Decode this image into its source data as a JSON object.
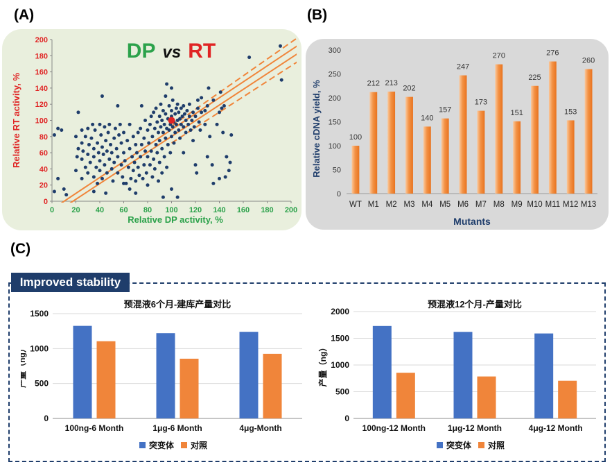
{
  "panels": {
    "a": "(A)",
    "b": "(B)",
    "c": "(C)"
  },
  "colors": {
    "scatter_bg": "#e9efdd",
    "bar_bg": "#d9d9d9",
    "dot": "#1f3d6b",
    "highlight": "#e02424",
    "orange": "#f0853a",
    "blue": "#4472c4",
    "banner": "#1f3d6b",
    "green_axis": "#2ca24b",
    "red_axis": "#e02424"
  },
  "chart_data": [
    {
      "id": "A",
      "type": "scatter",
      "title_parts": [
        "DP",
        "vs",
        "RT"
      ],
      "xlabel": "Relative DP activity, %",
      "ylabel": "Relative RT activity, %",
      "xlim": [
        0,
        200
      ],
      "ylim": [
        0,
        200
      ],
      "xticks": [
        0,
        20,
        40,
        60,
        80,
        100,
        120,
        140,
        160,
        180,
        200
      ],
      "yticks": [
        0,
        20,
        40,
        60,
        80,
        100,
        120,
        140,
        160,
        180,
        200
      ],
      "highlight_point": [
        100,
        100
      ],
      "trend_lines": [
        {
          "style": "solid",
          "points": [
            [
              0,
              -10
            ],
            [
              210,
              197
            ]
          ]
        },
        {
          "style": "solid",
          "points": [
            [
              0,
              -17
            ],
            [
              210,
              187
            ]
          ]
        },
        {
          "style": "dashed",
          "points": [
            [
              100,
              93
            ],
            [
              210,
              207
            ]
          ]
        },
        {
          "style": "dashed",
          "points": [
            [
              100,
              72
            ],
            [
              210,
              177
            ]
          ]
        }
      ],
      "points": [
        [
          2,
          12
        ],
        [
          2,
          82
        ],
        [
          5,
          90
        ],
        [
          8,
          88
        ],
        [
          12,
          8
        ],
        [
          20,
          38
        ],
        [
          20,
          80
        ],
        [
          21,
          55
        ],
        [
          22,
          65
        ],
        [
          22,
          110
        ],
        [
          25,
          88
        ],
        [
          25,
          72
        ],
        [
          25,
          52
        ],
        [
          25,
          28
        ],
        [
          26,
          62
        ],
        [
          28,
          42
        ],
        [
          28,
          80
        ],
        [
          30,
          90
        ],
        [
          30,
          35
        ],
        [
          30,
          58
        ],
        [
          31,
          70
        ],
        [
          32,
          48
        ],
        [
          33,
          78
        ],
        [
          34,
          95
        ],
        [
          35,
          30
        ],
        [
          35,
          55
        ],
        [
          35,
          65
        ],
        [
          36,
          88
        ],
        [
          37,
          42
        ],
        [
          38,
          72
        ],
        [
          38,
          22
        ],
        [
          39,
          60
        ],
        [
          40,
          95
        ],
        [
          40,
          50
        ],
        [
          40,
          38
        ],
        [
          41,
          82
        ],
        [
          42,
          28
        ],
        [
          42,
          67
        ],
        [
          43,
          58
        ],
        [
          44,
          92
        ],
        [
          44,
          45
        ],
        [
          45,
          75
        ],
        [
          46,
          35
        ],
        [
          46,
          62
        ],
        [
          47,
          85
        ],
        [
          48,
          52
        ],
        [
          48,
          95
        ],
        [
          49,
          70
        ],
        [
          50,
          40
        ],
        [
          50,
          60
        ],
        [
          51,
          25
        ],
        [
          52,
          78
        ],
        [
          52,
          48
        ],
        [
          53,
          90
        ],
        [
          54,
          65
        ],
        [
          55,
          35
        ],
        [
          55,
          55
        ],
        [
          56,
          82
        ],
        [
          57,
          95
        ],
        [
          58,
          45
        ],
        [
          58,
          72
        ],
        [
          59,
          30
        ],
        [
          60,
          60
        ],
        [
          60,
          85
        ],
        [
          61,
          50
        ],
        [
          62,
          22
        ],
        [
          63,
          75
        ],
        [
          64,
          42
        ],
        [
          65,
          65
        ],
        [
          65,
          95
        ],
        [
          66,
          28
        ],
        [
          67,
          55
        ],
        [
          68,
          80
        ],
        [
          68,
          38
        ],
        [
          69,
          48
        ],
        [
          70,
          70
        ],
        [
          70,
          25
        ],
        [
          71,
          60
        ],
        [
          72,
          85
        ],
        [
          72,
          42
        ],
        [
          73,
          32
        ],
        [
          74,
          55
        ],
        [
          74,
          90
        ],
        [
          75,
          70
        ],
        [
          76,
          28
        ],
        [
          77,
          45
        ],
        [
          77,
          78
        ],
        [
          78,
          62
        ],
        [
          78,
          100
        ],
        [
          79,
          35
        ],
        [
          80,
          88
        ],
        [
          80,
          55
        ],
        [
          80,
          20
        ],
        [
          81,
          72
        ],
        [
          82,
          95
        ],
        [
          82,
          45
        ],
        [
          83,
          105
        ],
        [
          83,
          62
        ],
        [
          84,
          30
        ],
        [
          84,
          80
        ],
        [
          85,
          110
        ],
        [
          85,
          52
        ],
        [
          86,
          90
        ],
        [
          86,
          40
        ],
        [
          87,
          70
        ],
        [
          87,
          115
        ],
        [
          88,
          98
        ],
        [
          88,
          60
        ],
        [
          89,
          85
        ],
        [
          89,
          25
        ],
        [
          90,
          105
        ],
        [
          90,
          75
        ],
        [
          90,
          48
        ],
        [
          91,
          120
        ],
        [
          91,
          92
        ],
        [
          92,
          65
        ],
        [
          92,
          100
        ],
        [
          92,
          35
        ],
        [
          93,
          85
        ],
        [
          93,
          112
        ],
        [
          94,
          55
        ],
        [
          94,
          95
        ],
        [
          95,
          78
        ],
        [
          95,
          108
        ],
        [
          95,
          130
        ],
        [
          96,
          90
        ],
        [
          96,
          42
        ],
        [
          97,
          102
        ],
        [
          97,
          70
        ],
        [
          98,
          118
        ],
        [
          98,
          88
        ],
        [
          99,
          60
        ],
        [
          99,
          95
        ],
        [
          100,
          105
        ],
        [
          100,
          80
        ],
        [
          100,
          112
        ],
        [
          101,
          92
        ],
        [
          101,
          125
        ],
        [
          102,
          98
        ],
        [
          102,
          72
        ],
        [
          103,
          108
        ],
        [
          103,
          85
        ],
        [
          104,
          115
        ],
        [
          104,
          95
        ],
        [
          105,
          100
        ],
        [
          105,
          120
        ],
        [
          106,
          88
        ],
        [
          106,
          110
        ],
        [
          107,
          102
        ],
        [
          107,
          78
        ],
        [
          108,
          115
        ],
        [
          108,
          95
        ],
        [
          109,
          105
        ],
        [
          110,
          92
        ],
        [
          110,
          118
        ],
        [
          110,
          60
        ],
        [
          111,
          108
        ],
        [
          112,
          100
        ],
        [
          112,
          85
        ],
        [
          113,
          112
        ],
        [
          114,
          95
        ],
        [
          115,
          105
        ],
        [
          115,
          120
        ],
        [
          116,
          88
        ],
        [
          117,
          100
        ],
        [
          118,
          110
        ],
        [
          118,
          75
        ],
        [
          119,
          92
        ],
        [
          120,
          105
        ],
        [
          120,
          45
        ],
        [
          121,
          35
        ],
        [
          122,
          125
        ],
        [
          122,
          115
        ],
        [
          123,
          98
        ],
        [
          124,
          88
        ],
        [
          125,
          110
        ],
        [
          125,
          128
        ],
        [
          128,
          95
        ],
        [
          128,
          112
        ],
        [
          130,
          118
        ],
        [
          130,
          55
        ],
        [
          131,
          140
        ],
        [
          132,
          80
        ],
        [
          134,
          45
        ],
        [
          135,
          22
        ],
        [
          135,
          125
        ],
        [
          138,
          95
        ],
        [
          140,
          28
        ],
        [
          140,
          110
        ],
        [
          141,
          135
        ],
        [
          142,
          115
        ],
        [
          143,
          85
        ],
        [
          144,
          118
        ],
        [
          145,
          30
        ],
        [
          146,
          55
        ],
        [
          148,
          38
        ],
        [
          149,
          48
        ],
        [
          150,
          82
        ],
        [
          42,
          130
        ],
        [
          55,
          118
        ],
        [
          75,
          118
        ],
        [
          96,
          145
        ],
        [
          100,
          140
        ],
        [
          105,
          5
        ],
        [
          93,
          5
        ],
        [
          100,
          15
        ],
        [
          165,
          178
        ],
        [
          192,
          150
        ],
        [
          191,
          192
        ],
        [
          10,
          15
        ],
        [
          5,
          28
        ],
        [
          60,
          22
        ],
        [
          65,
          15
        ],
        [
          70,
          10
        ],
        [
          45,
          10
        ],
        [
          35,
          12
        ]
      ]
    },
    {
      "id": "B",
      "type": "bar",
      "xlabel": "Mutants",
      "ylabel": "Relative cDNA yield, %",
      "ylim": [
        0,
        300
      ],
      "yticks": [
        0,
        50,
        100,
        150,
        200,
        250,
        300
      ],
      "categories": [
        "WT",
        "M1",
        "M2",
        "M3",
        "M4",
        "M5",
        "M6",
        "M7",
        "M8",
        "M9",
        "M10",
        "M11",
        "M12",
        "M13"
      ],
      "values": [
        100,
        212,
        213,
        202,
        140,
        157,
        247,
        173,
        270,
        151,
        225,
        276,
        153,
        260
      ],
      "labels": [
        "100",
        "212",
        "213",
        "202",
        "140",
        "157",
        "247",
        "173",
        "270",
        "151",
        "225",
        "276",
        "153",
        "260"
      ]
    },
    {
      "id": "C1",
      "type": "bar",
      "title": "预混液6个月-建库产量对比",
      "ylabel": "产量（ng）",
      "ylim": [
        0,
        1500
      ],
      "yticks": [
        0,
        500,
        1000,
        1500
      ],
      "categories": [
        "100ng-6 Month",
        "1μg-6 Month",
        "4μg-Month"
      ],
      "series": [
        {
          "name": "突变体",
          "values": [
            1325,
            1220,
            1240
          ]
        },
        {
          "name": "对照",
          "values": [
            1105,
            855,
            925
          ]
        }
      ]
    },
    {
      "id": "C2",
      "type": "bar",
      "title": "预混液12个月-产量对比",
      "ylabel": "产量（ng）",
      "ylim": [
        0,
        2000
      ],
      "yticks": [
        0,
        500,
        1000,
        1500,
        2000
      ],
      "categories": [
        "100ng-12 Month",
        "1μg-12 Month",
        "4μg-12 Month"
      ],
      "series": [
        {
          "name": "突变体",
          "values": [
            1730,
            1620,
            1590
          ]
        },
        {
          "name": "对照",
          "values": [
            855,
            785,
            705
          ]
        }
      ]
    }
  ],
  "banner": {
    "text": "Improved stability"
  }
}
